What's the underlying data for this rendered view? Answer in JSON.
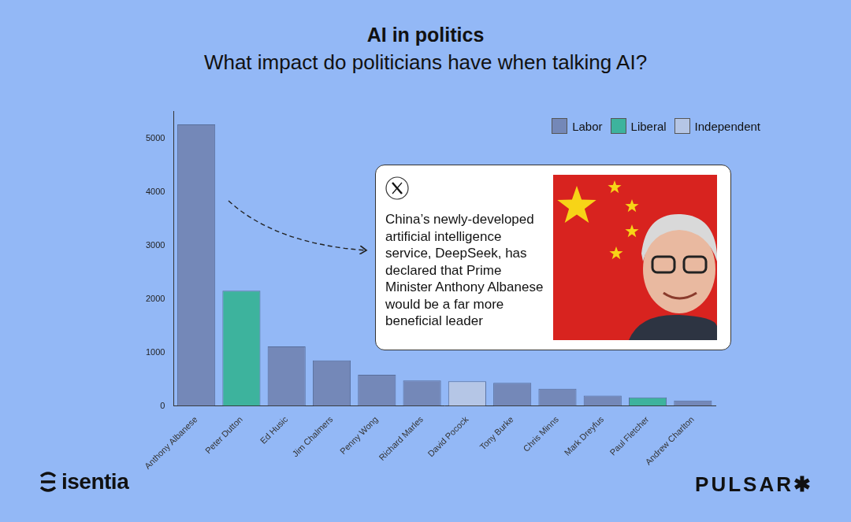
{
  "chart_data": {
    "type": "bar",
    "title": "AI in politics",
    "subtitle": "What impact do politicians have when talking AI?",
    "categories": [
      "Anthony Albanese",
      "Peter Dutton",
      "Ed Husic",
      "Jim Chalmers",
      "Penny Wong",
      "Richard Marles",
      "David Pocock",
      "Tony Burke",
      "Chris Minns",
      "Mark Dreyfus",
      "Paul Fletcher",
      "Andrew Charlton"
    ],
    "series": [
      {
        "name": "Labor",
        "color": "#7488b8",
        "values": [
          5260,
          null,
          1110,
          850,
          580,
          475,
          null,
          430,
          320,
          190,
          null,
          100
        ]
      },
      {
        "name": "Liberal",
        "color": "#3db39d",
        "values": [
          null,
          2150,
          null,
          null,
          null,
          null,
          null,
          null,
          null,
          null,
          160,
          null
        ]
      },
      {
        "name": "Independent",
        "color": "#b5c6e6",
        "values": [
          null,
          null,
          null,
          null,
          null,
          null,
          460,
          null,
          null,
          null,
          null,
          null
        ]
      }
    ],
    "stacked": true,
    "ylim": [
      0,
      5500
    ],
    "yticks": [
      0,
      1000,
      2000,
      3000,
      4000,
      5000
    ],
    "grid": false,
    "legend": "upper right",
    "annotation": "China’s newly-developed artificial intelligence service, DeepSeek, has declared that Prime Minister Anthony Albanese would be a far more beneficial leader",
    "logos": [
      "isentia",
      "PULSAR✱"
    ]
  }
}
